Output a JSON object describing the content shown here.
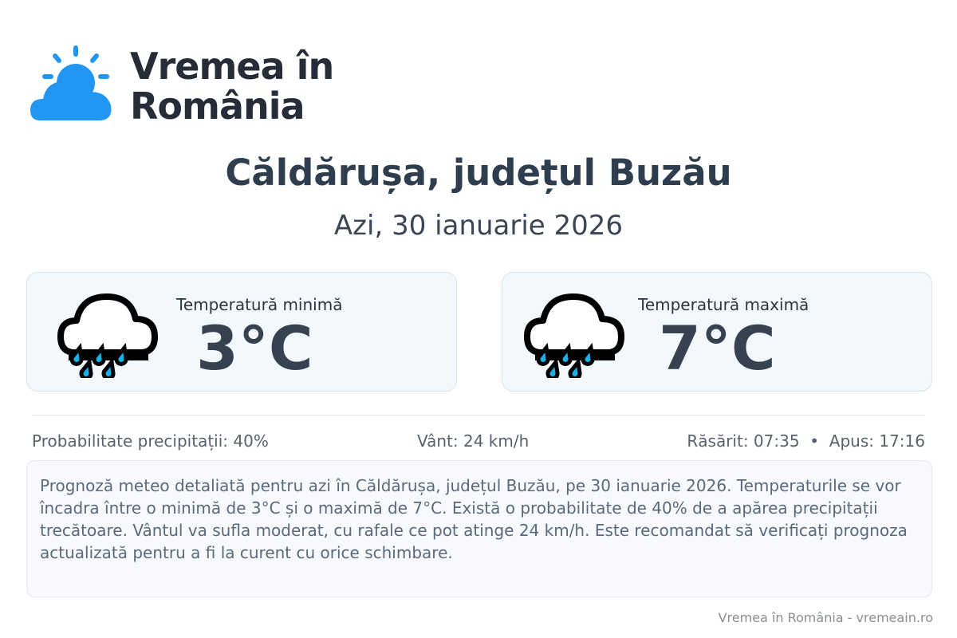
{
  "brand": {
    "line1": "Vremea în",
    "line2": "România",
    "accent": "#2196f3"
  },
  "header": {
    "title": "Căldărușa, județul Buzău",
    "date": "Azi, 30 ianuarie 2026"
  },
  "cards": [
    {
      "icon": "rain-cloud-icon",
      "label": "Temperatură minimă",
      "value": "3°C"
    },
    {
      "icon": "rain-cloud-icon",
      "label": "Temperatură maximă",
      "value": "7°C"
    }
  ],
  "stats": {
    "precip": "Probabilitate precipitații: 40%",
    "wind": "Vânt: 24 km/h",
    "sun": "Răsărit: 07:35  •  Apus: 17:16"
  },
  "description": "Prognoză meteo detaliată pentru azi în Căldărușa, județul Buzău, pe 30 ianuarie 2026. Temperaturile se vor încadra între o minimă de 3°C și o maximă de 7°C. Există o probabilitate de 40% de a apărea precipitații trecătoare. Vântul va sufla moderat, cu rafale ce pot atinge 24 km/h. Este recomandat să verificați prognoza actualizată pentru a fi la curent cu orice schimbare.",
  "footer": "Vremea în România - vremeain.ro"
}
